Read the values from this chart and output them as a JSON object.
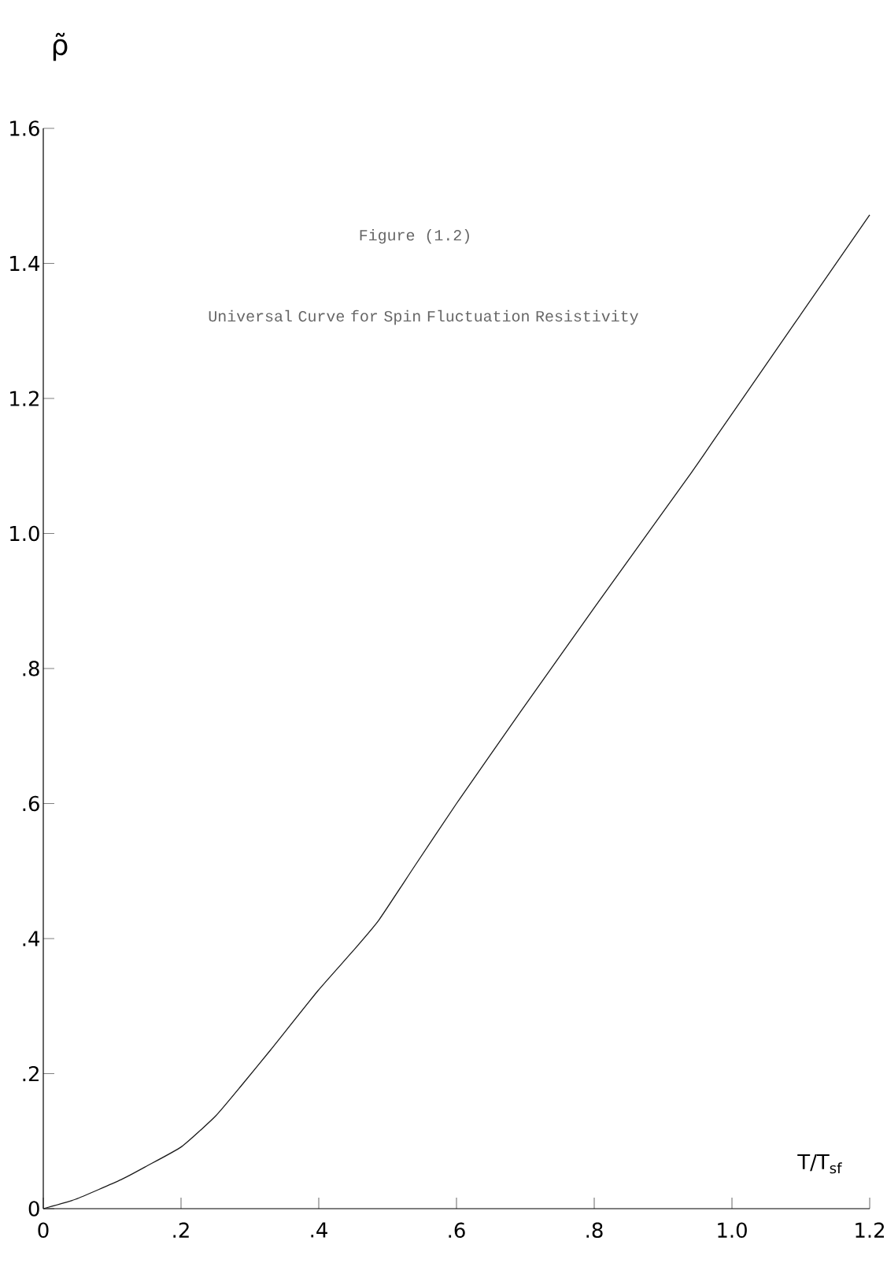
{
  "chart_data": {
    "type": "line",
    "title": "Figure (1.2)",
    "subtitle": "Universal Curve for Spin Fluctuation Resistivity",
    "xlabel": "T/T$_{sf}$",
    "ylabel": "ρ̃",
    "x": [
      0,
      0.047,
      0.113,
      0.15,
      0.201,
      0.25,
      0.289,
      0.33,
      0.399,
      0.45,
      0.487,
      0.539,
      0.6,
      0.693,
      0.8,
      0.941,
      0.981,
      1.2
    ],
    "values": [
      0,
      0.014,
      0.043,
      0.063,
      0.092,
      0.137,
      0.184,
      0.235,
      0.323,
      0.382,
      0.427,
      0.507,
      0.6,
      0.736,
      0.89,
      1.09,
      1.149,
      1.472
    ],
    "color": "#1a1a1a",
    "xlim": [
      0,
      1.2
    ],
    "ylim": [
      0,
      1.6
    ],
    "xticks": [
      0,
      {
        "value": 0.2,
        "label": ".2"
      },
      {
        "value": 0.4,
        "label": ".4"
      },
      {
        "value": 0.6,
        "label": ".6"
      },
      {
        "value": 0.8,
        "label": ".8"
      },
      {
        "value": 1.0,
        "label": "1.0"
      },
      1.2
    ],
    "yticks": [
      0,
      {
        "value": 0.2,
        "label": ".2"
      },
      {
        "value": 0.4,
        "label": ".4"
      },
      {
        "value": 0.6,
        "label": ".6"
      },
      {
        "value": 0.8,
        "label": ".8"
      },
      {
        "value": 1.0,
        "label": "1.0"
      },
      1.2,
      1.4,
      1.6
    ]
  }
}
